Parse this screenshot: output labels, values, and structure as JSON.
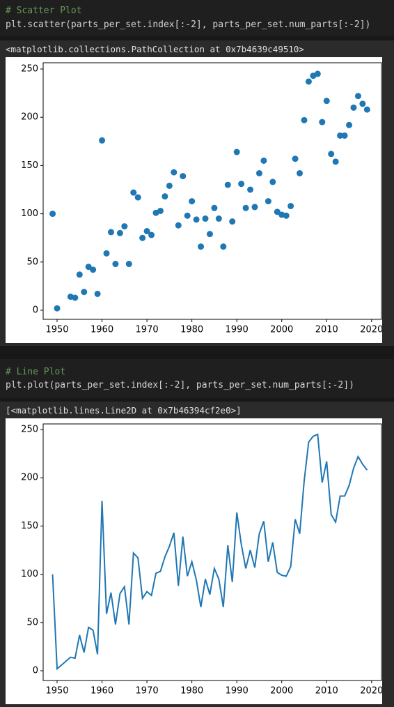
{
  "cells": [
    {
      "comment": "# Scatter Plot",
      "code": "plt.scatter(parts_per_set.index[:-2], parts_per_set.num_parts[:-2])",
      "output": "<matplotlib.collections.PathCollection at 0x7b4639c49510>"
    },
    {
      "comment": "# Line Plot",
      "code": "plt.plot(parts_per_set.index[:-2], parts_per_set.num_parts[:-2])",
      "output": "[<matplotlib.lines.Line2D at 0x7b46394cf2e0>]"
    }
  ],
  "chart_data": [
    {
      "type": "scatter",
      "color": "#1f77b4",
      "x": [
        1949,
        1950,
        1953,
        1954,
        1955,
        1956,
        1957,
        1958,
        1959,
        1960,
        1961,
        1962,
        1963,
        1964,
        1965,
        1966,
        1967,
        1968,
        1969,
        1970,
        1971,
        1972,
        1973,
        1974,
        1975,
        1976,
        1977,
        1978,
        1979,
        1980,
        1981,
        1982,
        1983,
        1984,
        1985,
        1986,
        1987,
        1988,
        1989,
        1990,
        1991,
        1992,
        1993,
        1994,
        1995,
        1996,
        1997,
        1998,
        1999,
        2000,
        2001,
        2002,
        2003,
        2004,
        2005,
        2006,
        2007,
        2008,
        2009,
        2010,
        2011,
        2012,
        2013,
        2014,
        2015,
        2016,
        2017,
        2018,
        2019
      ],
      "values": [
        100,
        2,
        14,
        13,
        37,
        19,
        45,
        42,
        17,
        176,
        59,
        81,
        48,
        80,
        87,
        48,
        122,
        117,
        75,
        82,
        78,
        101,
        103,
        118,
        129,
        143,
        88,
        139,
        98,
        113,
        94,
        66,
        95,
        79,
        106,
        95,
        66,
        130,
        92,
        164,
        131,
        106,
        125,
        107,
        142,
        155,
        113,
        133,
        102,
        99,
        98,
        108,
        157,
        142,
        197,
        237,
        243,
        245,
        195,
        217,
        162,
        154,
        181,
        181,
        192,
        210,
        222,
        214,
        208
      ],
      "xlim": [
        1946.9,
        2022.2
      ],
      "ylim": [
        -9.4,
        256.5
      ],
      "xticks": [
        1950,
        1960,
        1970,
        1980,
        1990,
        2000,
        2010,
        2020
      ],
      "yticks": [
        0,
        50,
        100,
        150,
        200,
        250
      ]
    },
    {
      "type": "line",
      "color": "#1f77b4",
      "x": [
        1949,
        1950,
        1953,
        1954,
        1955,
        1956,
        1957,
        1958,
        1959,
        1960,
        1961,
        1962,
        1963,
        1964,
        1965,
        1966,
        1967,
        1968,
        1969,
        1970,
        1971,
        1972,
        1973,
        1974,
        1975,
        1976,
        1977,
        1978,
        1979,
        1980,
        1981,
        1982,
        1983,
        1984,
        1985,
        1986,
        1987,
        1988,
        1989,
        1990,
        1991,
        1992,
        1993,
        1994,
        1995,
        1996,
        1997,
        1998,
        1999,
        2000,
        2001,
        2002,
        2003,
        2004,
        2005,
        2006,
        2007,
        2008,
        2009,
        2010,
        2011,
        2012,
        2013,
        2014,
        2015,
        2016,
        2017,
        2018,
        2019
      ],
      "values": [
        100,
        2,
        14,
        13,
        37,
        19,
        45,
        42,
        17,
        176,
        59,
        81,
        48,
        80,
        87,
        48,
        122,
        117,
        75,
        82,
        78,
        101,
        103,
        118,
        129,
        143,
        88,
        139,
        98,
        113,
        94,
        66,
        95,
        79,
        106,
        95,
        66,
        130,
        92,
        164,
        131,
        106,
        125,
        107,
        142,
        155,
        113,
        133,
        102,
        99,
        98,
        108,
        157,
        142,
        197,
        237,
        243,
        245,
        195,
        217,
        162,
        154,
        181,
        181,
        192,
        210,
        222,
        214,
        208
      ],
      "xlim": [
        1946.9,
        2022.2
      ],
      "ylim": [
        -10.1,
        255.8
      ],
      "xticks": [
        1950,
        1960,
        1970,
        1980,
        1990,
        2000,
        2010,
        2020
      ],
      "yticks": [
        0,
        50,
        100,
        150,
        200,
        250
      ]
    }
  ]
}
